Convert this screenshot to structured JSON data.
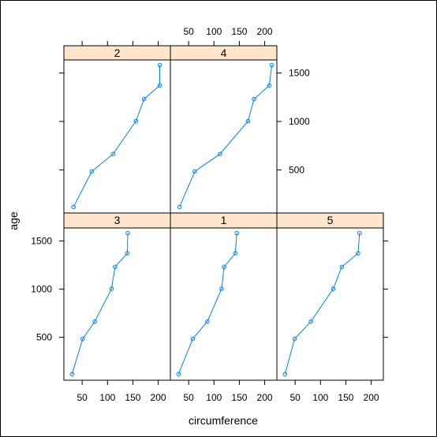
{
  "chart_data": {
    "type": "line",
    "layout": "lattice",
    "xlabel": "circumference",
    "ylabel": "age",
    "xlim": [
      14,
      224
    ],
    "ylim": [
      55,
      1635
    ],
    "xticks": [
      50,
      100,
      150,
      200
    ],
    "yticks": [
      500,
      1000,
      1500
    ],
    "panels": [
      {
        "label": "3",
        "position": "bottom-left",
        "x": [
          30,
          51,
          75,
          108,
          115,
          139,
          140
        ],
        "y": [
          118,
          484,
          664,
          1004,
          1231,
          1372,
          1582
        ]
      },
      {
        "label": "1",
        "position": "bottom-center",
        "x": [
          30,
          58,
          87,
          115,
          120,
          142,
          145
        ],
        "y": [
          118,
          484,
          664,
          1004,
          1231,
          1372,
          1582
        ]
      },
      {
        "label": "5",
        "position": "bottom-right",
        "x": [
          30,
          49,
          81,
          125,
          142,
          174,
          177
        ],
        "y": [
          118,
          484,
          664,
          1004,
          1231,
          1372,
          1582
        ]
      },
      {
        "label": "2",
        "position": "top-left",
        "x": [
          33,
          69,
          111,
          156,
          172,
          203,
          203
        ],
        "y": [
          118,
          484,
          664,
          1004,
          1231,
          1372,
          1582
        ]
      },
      {
        "label": "4",
        "position": "top-center",
        "x": [
          32,
          62,
          112,
          167,
          179,
          209,
          214
        ],
        "y": [
          118,
          484,
          664,
          1004,
          1231,
          1372,
          1582
        ]
      }
    ],
    "colors": {
      "line": "#0080ff",
      "strip": "#ffe5cc",
      "marker": "#0080ff"
    }
  }
}
